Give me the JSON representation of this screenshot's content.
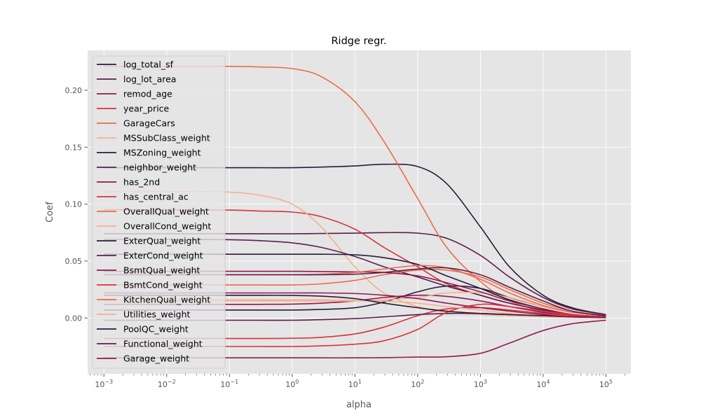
{
  "chart_data": {
    "type": "line",
    "title": "Ridge regr.",
    "xlabel": "alpha",
    "ylabel": "Coef",
    "xscale": "log",
    "xlim": [
      0.00055,
      250000
    ],
    "ylim": [
      -0.049,
      0.235
    ],
    "x": [
      0.001,
      0.0029,
      0.01,
      0.029,
      0.1,
      0.29,
      1,
      2.9,
      10,
      29,
      100,
      290,
      1000,
      2900,
      10000,
      29000,
      100000
    ],
    "x_ticks": [
      {
        "value": 0.001,
        "base": "10",
        "exp": "−3"
      },
      {
        "value": 0.01,
        "base": "10",
        "exp": "−2"
      },
      {
        "value": 0.1,
        "base": "10",
        "exp": "−1"
      },
      {
        "value": 1,
        "base": "10",
        "exp": "0"
      },
      {
        "value": 10,
        "base": "10",
        "exp": "1"
      },
      {
        "value": 100,
        "base": "10",
        "exp": "2"
      },
      {
        "value": 1000,
        "base": "10",
        "exp": "3"
      },
      {
        "value": 10000,
        "base": "10",
        "exp": "4"
      },
      {
        "value": 100000,
        "base": "10",
        "exp": "5"
      }
    ],
    "y_ticks": [
      {
        "value": 0.0,
        "label": "0.00"
      },
      {
        "value": 0.05,
        "label": "0.05"
      },
      {
        "value": 0.1,
        "label": "0.10"
      },
      {
        "value": 0.15,
        "label": "0.15"
      },
      {
        "value": 0.2,
        "label": "0.20"
      }
    ],
    "grid": true,
    "legend_position": "upper-left",
    "colors": {
      "background": "#e5e5e5",
      "grid": "#ffffff",
      "tick": "#555555"
    },
    "series": [
      {
        "name": "log_total_sf",
        "color": "#2b1a3a",
        "values": [
          0.132,
          0.132,
          0.132,
          0.132,
          0.132,
          0.132,
          0.132,
          0.1325,
          0.1335,
          0.135,
          0.133,
          0.118,
          0.08,
          0.045,
          0.02,
          0.009,
          0.003
        ]
      },
      {
        "name": "log_lot_area",
        "color": "#5b1f4a",
        "values": [
          0.074,
          0.074,
          0.074,
          0.074,
          0.074,
          0.074,
          0.074,
          0.0742,
          0.0745,
          0.075,
          0.0745,
          0.07,
          0.055,
          0.036,
          0.018,
          0.008,
          0.003
        ]
      },
      {
        "name": "remod_age",
        "color": "#8e1a52",
        "values": [
          -0.035,
          -0.035,
          -0.035,
          -0.035,
          -0.035,
          -0.035,
          -0.035,
          -0.035,
          -0.035,
          -0.0348,
          -0.0343,
          -0.034,
          -0.031,
          -0.022,
          -0.011,
          -0.005,
          -0.002
        ]
      },
      {
        "name": "year_price",
        "color": "#d7333d",
        "values": [
          0.095,
          0.095,
          0.095,
          0.095,
          0.0948,
          0.094,
          0.093,
          0.089,
          0.078,
          0.062,
          0.045,
          0.03,
          0.02,
          0.013,
          0.007,
          0.003,
          0.001
        ]
      },
      {
        "name": "GarageCars",
        "color": "#ed6a4a",
        "values": [
          0.221,
          0.221,
          0.221,
          0.221,
          0.221,
          0.2205,
          0.219,
          0.212,
          0.19,
          0.155,
          0.105,
          0.062,
          0.032,
          0.015,
          0.006,
          0.002,
          0.001
        ]
      },
      {
        "name": "MSSubClass_weight",
        "color": "#f5b08d",
        "values": [
          0.111,
          0.111,
          0.111,
          0.111,
          0.1105,
          0.108,
          0.1,
          0.08,
          0.045,
          0.022,
          0.01,
          0.005,
          0.003,
          0.002,
          0.001,
          0.0005,
          0.0002
        ]
      },
      {
        "name": "MSZoning_weight",
        "color": "#2b1a3a",
        "values": [
          0.007,
          0.007,
          0.007,
          0.007,
          0.007,
          0.007,
          0.007,
          0.0075,
          0.009,
          0.014,
          0.023,
          0.028,
          0.026,
          0.018,
          0.01,
          0.005,
          0.002
        ]
      },
      {
        "name": "neighbor_weight",
        "color": "#5b1f4a",
        "values": [
          0.069,
          0.069,
          0.069,
          0.069,
          0.0688,
          0.068,
          0.066,
          0.062,
          0.054,
          0.045,
          0.036,
          0.028,
          0.02,
          0.013,
          0.007,
          0.003,
          0.001
        ]
      },
      {
        "name": "has_2nd",
        "color": "#8e1a52",
        "values": [
          0.012,
          0.012,
          0.012,
          0.012,
          0.012,
          0.012,
          0.0122,
          0.013,
          0.015,
          0.018,
          0.02,
          0.019,
          0.015,
          0.01,
          0.005,
          0.002,
          0.001
        ]
      },
      {
        "name": "has_central_ac",
        "color": "#d7333d",
        "values": [
          -0.018,
          -0.018,
          -0.018,
          -0.018,
          -0.018,
          -0.018,
          -0.0178,
          -0.017,
          -0.014,
          -0.008,
          0.002,
          0.008,
          0.009,
          0.007,
          0.004,
          0.002,
          0.0008
        ]
      },
      {
        "name": "OverallQual_weight",
        "color": "#ed6a4a",
        "values": [
          0.029,
          0.029,
          0.029,
          0.029,
          0.029,
          0.029,
          0.029,
          0.03,
          0.033,
          0.038,
          0.042,
          0.042,
          0.036,
          0.025,
          0.013,
          0.006,
          0.002
        ]
      },
      {
        "name": "OverallCond_weight",
        "color": "#f5b08d",
        "values": [
          0.015,
          0.015,
          0.015,
          0.015,
          0.015,
          0.015,
          0.015,
          0.015,
          0.015,
          0.016,
          0.018,
          0.022,
          0.022,
          0.018,
          0.01,
          0.005,
          0.002
        ]
      },
      {
        "name": "ExterQual_weight",
        "color": "#2b1a3a",
        "values": [
          0.056,
          0.056,
          0.056,
          0.056,
          0.056,
          0.056,
          0.056,
          0.056,
          0.0555,
          0.053,
          0.047,
          0.037,
          0.026,
          0.016,
          0.008,
          0.003,
          0.001
        ]
      },
      {
        "name": "ExterCond_weight",
        "color": "#5b1f4a",
        "values": [
          -0.002,
          -0.002,
          -0.002,
          -0.002,
          -0.002,
          -0.002,
          -0.002,
          -0.0015,
          -0.0005,
          0.001,
          0.003,
          0.004,
          0.004,
          0.003,
          0.002,
          0.001,
          0.0005
        ]
      },
      {
        "name": "BsmtQual_weight",
        "color": "#8e1a52",
        "values": [
          0.041,
          0.041,
          0.041,
          0.041,
          0.041,
          0.041,
          0.041,
          0.0408,
          0.0405,
          0.04,
          0.037,
          0.031,
          0.023,
          0.015,
          0.008,
          0.003,
          0.001
        ]
      },
      {
        "name": "BsmtCond_weight",
        "color": "#d7333d",
        "values": [
          -0.025,
          -0.025,
          -0.025,
          -0.025,
          -0.025,
          -0.025,
          -0.025,
          -0.0245,
          -0.023,
          -0.02,
          -0.01,
          0.005,
          0.012,
          0.01,
          0.006,
          0.003,
          0.001
        ]
      },
      {
        "name": "KitchenQual_weight",
        "color": "#ed6a4a",
        "values": [
          0.038,
          0.038,
          0.038,
          0.038,
          0.038,
          0.038,
          0.038,
          0.0385,
          0.04,
          0.043,
          0.046,
          0.044,
          0.034,
          0.022,
          0.011,
          0.005,
          0.002
        ]
      },
      {
        "name": "Utilities_weight",
        "color": "#f5b08d",
        "values": [
          0.016,
          0.016,
          0.016,
          0.016,
          0.016,
          0.016,
          0.016,
          0.016,
          0.0155,
          0.015,
          0.013,
          0.01,
          0.007,
          0.004,
          0.002,
          0.001,
          0.0003
        ]
      },
      {
        "name": "PoolQC_weight",
        "color": "#2b1a3a",
        "values": [
          0.02,
          0.02,
          0.02,
          0.02,
          0.02,
          0.02,
          0.0198,
          0.0192,
          0.017,
          0.013,
          0.009,
          0.006,
          0.004,
          0.003,
          0.002,
          0.001,
          0.0004
        ]
      },
      {
        "name": "Functional_weight",
        "color": "#5b1f4a",
        "values": [
          0.038,
          0.038,
          0.038,
          0.038,
          0.038,
          0.038,
          0.038,
          0.038,
          0.0385,
          0.04,
          0.043,
          0.044,
          0.038,
          0.027,
          0.015,
          0.006,
          0.002
        ]
      },
      {
        "name": "Garage_weight",
        "color": "#8e1a52",
        "values": [
          0.022,
          0.022,
          0.022,
          0.022,
          0.022,
          0.022,
          0.022,
          0.022,
          0.0215,
          0.02,
          0.017,
          0.013,
          0.009,
          0.006,
          0.003,
          0.001,
          0.0005
        ]
      }
    ]
  }
}
